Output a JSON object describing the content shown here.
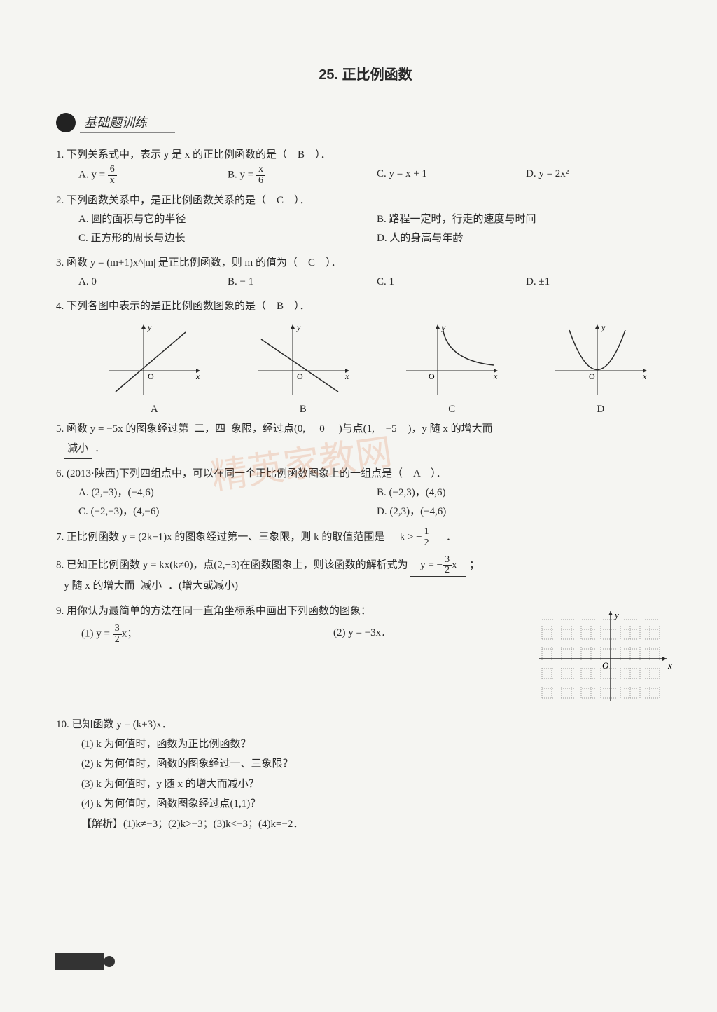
{
  "title": "25. 正比例函数",
  "section_banner": "基础题训练",
  "watermark": "精英家教网",
  "q1": {
    "stem": "1. 下列关系式中，表示 y 是 x 的正比例函数的是（　B　）．",
    "A": "A. y = ",
    "A_frac_n": "6",
    "A_frac_d": "x",
    "B": "B. y = ",
    "B_frac_n": "x",
    "B_frac_d": "6",
    "C": "C. y = x + 1",
    "D": "D. y = 2x²"
  },
  "q2": {
    "stem": "2. 下列函数关系中，是正比例函数关系的是（　C　）．",
    "A": "A. 圆的面积与它的半径",
    "B": "B. 路程一定时，行走的速度与时间",
    "C": "C. 正方形的周长与边长",
    "D": "D. 人的身高与年龄"
  },
  "q3": {
    "stem": "3. 函数 y = (m+1)x^|m| 是正比例函数，则 m 的值为（　C　）．",
    "A": "A. 0",
    "B": "B. − 1",
    "C": "C. 1",
    "D": "D. ±1"
  },
  "q4": {
    "stem": "4. 下列各图中表示的是正比例函数图象的是（　B　）．",
    "labels": [
      "A",
      "B",
      "C",
      "D"
    ]
  },
  "q5": {
    "pre": "5. 函数 y = −5x 的图象经过第",
    "b1": "二，四",
    "mid1": "象限，经过点(0,",
    "b2": "0",
    "mid2": ")与点(1,",
    "b3": "−5",
    "mid3": ")，y 随 x 的增大而",
    "b4": "减小",
    "post": "．"
  },
  "q6": {
    "stem": "6. (2013·陕西)下列四组点中，可以在同一个正比例函数图象上的一组点是（　A　）．",
    "A": "A. (2,−3)，(−4,6)",
    "B": "B. (−2,3)，(4,6)",
    "C": "C. (−2,−3)，(4,−6)",
    "D": "D. (2,3)，(−4,6)"
  },
  "q7": {
    "pre": "7. 正比例函数 y = (2k+1)x 的图象经过第一、三象限，则 k 的取值范围是",
    "ans_pre": "k > −",
    "ans_frac_n": "1",
    "ans_frac_d": "2",
    "post": "．"
  },
  "q8": {
    "pre": "8. 已知正比例函数 y = kx(k≠0)，点(2,−3)在函数图象上，则该函数的解析式为",
    "ans_pre": "y = −",
    "ans_frac_n": "3",
    "ans_frac_d": "2",
    "ans_post": "x",
    "mid": "；",
    "line2_pre": "y 随 x 的增大而",
    "b1": "减小",
    "line2_post": "．(增大或减小)"
  },
  "q9": {
    "stem": "9. 用你认为最简单的方法在同一直角坐标系中画出下列函数的图象：",
    "s1_pre": "(1) y = ",
    "s1_frac_n": "3",
    "s1_frac_d": "2",
    "s1_post": "x；",
    "s2": "(2) y = −3x．"
  },
  "q10": {
    "stem": "10. 已知函数 y = (k+3)x．",
    "s1": "(1) k 为何值时，函数为正比例函数？",
    "s2": "(2) k 为何值时，函数的图象经过一、三象限？",
    "s3": "(3) k 为何值时，y 随 x 的增大而减小？",
    "s4": "(4) k 为何值时，函数图象经过点(1,1)？",
    "ans": "【解析】(1)k≠−3；(2)k>−3；(3)k<−3；(4)k=−2．"
  },
  "axis": {
    "x": "x",
    "y": "y",
    "O": "O"
  },
  "graph_colors": {
    "axis": "#2a2a2a",
    "curve": "#2a2a2a"
  },
  "grid": {
    "cols": 12,
    "rows": 8,
    "cell": 14,
    "stroke": "#9a9a9a",
    "axis": "#2a2a2a",
    "arrow": "#2a2a2a"
  }
}
